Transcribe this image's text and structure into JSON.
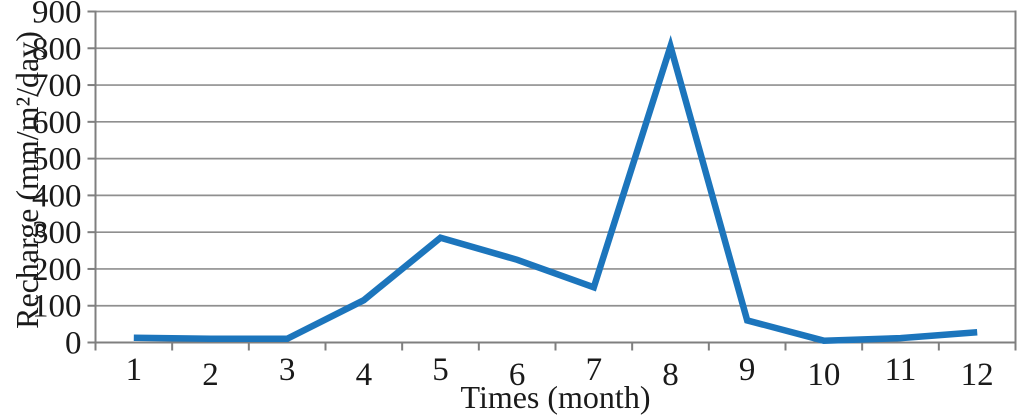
{
  "chart_data": {
    "type": "line",
    "title": "",
    "xlabel": "Times (month)",
    "ylabel": "Recharge (mm/m²/day)",
    "categories": [
      "1",
      "2",
      "3",
      "4",
      "5",
      "6",
      "7",
      "8",
      "9",
      "10",
      "11",
      "12"
    ],
    "series": [
      {
        "name": "Recharge",
        "values": [
          13,
          10,
          10,
          115,
          285,
          225,
          150,
          805,
          60,
          5,
          12,
          28
        ]
      }
    ],
    "ylim": [
      0,
      900
    ],
    "yticks": [
      0,
      100,
      200,
      300,
      400,
      500,
      600,
      700,
      800,
      900
    ],
    "grid": "horizontal",
    "legend_position": "none",
    "colors": {
      "line": "#1c75bc",
      "grid": "#8f8f8f",
      "axis": "#7f7f7f",
      "text": "#1a1a1a",
      "background": "#ffffff"
    }
  }
}
